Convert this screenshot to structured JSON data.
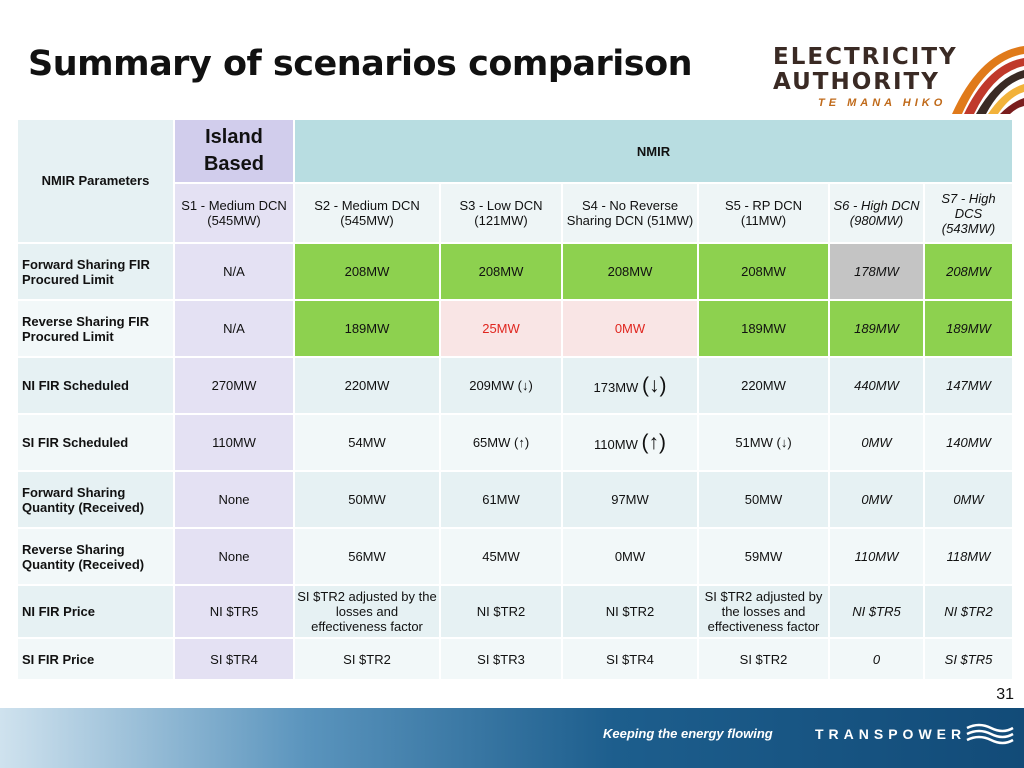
{
  "title": "Summary of scenarios comparison",
  "logo": {
    "line1": "ELECTRICITY",
    "line2": "AUTHORITY",
    "line3": "TE MANA HIKO"
  },
  "table": {
    "params_label": "NMIR Parameters",
    "island_based_label": "Island Based",
    "nmir_label": "NMIR",
    "scenarios": [
      "S1 - Medium DCN (545MW)",
      "S2 - Medium DCN (545MW)",
      "S3 - Low DCN (121MW)",
      "S4 - No Reverse Sharing DCN (51MW)",
      "S5 - RP DCN (11MW)",
      "S6 - High DCN (980MW)",
      "S7 - High DCS (543MW)"
    ],
    "rows": [
      {
        "label": "Forward Sharing FIR Procured Limit",
        "values": [
          "N/A",
          "208MW",
          "208MW",
          "208MW",
          "208MW",
          "178MW",
          "208MW"
        ]
      },
      {
        "label": "Reverse Sharing FIR Procured Limit",
        "values": [
          "N/A",
          "189MW",
          "25MW",
          "0MW",
          "189MW",
          "189MW",
          "189MW"
        ]
      },
      {
        "label": "NI FIR Scheduled",
        "values": [
          "270MW",
          "220MW",
          "209MW (↓)",
          "173MW",
          "220MW",
          "440MW",
          "147MW"
        ]
      },
      {
        "label": "SI FIR Scheduled",
        "values": [
          "110MW",
          "54MW",
          "65MW (↑)",
          "110MW",
          "51MW (↓)",
          "0MW",
          "140MW"
        ]
      },
      {
        "label": "Forward Sharing Quantity (Received)",
        "values": [
          "None",
          "50MW",
          "61MW",
          "97MW",
          "50MW",
          "0MW",
          "0MW"
        ]
      },
      {
        "label": "Reverse Sharing Quantity (Received)",
        "values": [
          "None",
          "56MW",
          "45MW",
          "0MW",
          "59MW",
          "110MW",
          "118MW"
        ]
      },
      {
        "label": "NI FIR Price",
        "values": [
          "NI $TR5",
          "SI $TR2 adjusted by the losses and effectiveness factor",
          "NI $TR2",
          "NI $TR2",
          "SI $TR2 adjusted by the losses and effectiveness factor",
          "NI $TR5",
          "NI $TR2"
        ]
      },
      {
        "label": "SI FIR Price",
        "values": [
          "SI $TR4",
          "SI $TR2",
          "SI $TR3",
          "SI $TR4",
          "SI $TR2",
          "0",
          "SI $TR5"
        ]
      }
    ],
    "s4_arrows": {
      "ni": "(↓)",
      "si": "(↑)"
    }
  },
  "page_number": "31",
  "footer": {
    "tagline": "Keeping the energy flowing",
    "brand": "TRANSPOWER"
  },
  "colors": {
    "green": "#8dd14f",
    "gray": "#c4c4c4",
    "pink": "#f9e5e5",
    "red_text": "#e0261f",
    "nmir_header": "#b8dde1",
    "island_header": "#d1cdec",
    "island_cell": "#e4e1f3"
  }
}
